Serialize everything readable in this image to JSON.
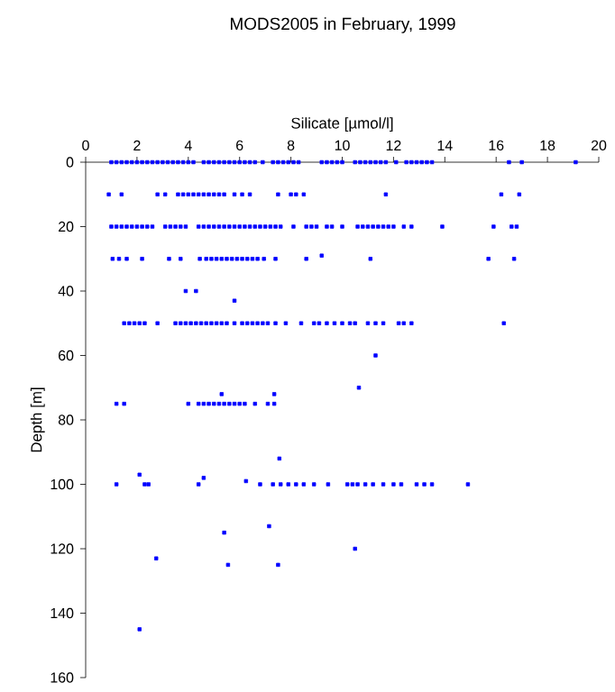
{
  "chart_data": {
    "type": "scatter",
    "title": "MODS2005 in February, 1999",
    "xlabel": "Silicate [µmol/l]",
    "ylabel": "Depth [m]",
    "xlim": [
      0,
      20
    ],
    "ylim": [
      160,
      0
    ],
    "xticks": [
      0,
      2,
      4,
      6,
      8,
      10,
      12,
      14,
      16,
      18,
      20
    ],
    "yticks": [
      0,
      20,
      40,
      60,
      80,
      100,
      120,
      140,
      160
    ],
    "marker": "square",
    "grid": false,
    "series": [
      {
        "color": "#0000ff",
        "x": [
          1.0,
          1.2,
          1.4,
          1.6,
          1.8,
          2.0,
          2.2,
          2.4,
          2.6,
          2.8,
          3.0,
          3.2,
          3.4,
          3.6,
          3.8,
          4.0,
          4.2,
          4.6,
          4.8,
          5.0,
          5.2,
          5.4,
          5.6,
          5.8,
          6.0,
          6.2,
          6.4,
          6.6,
          6.9,
          7.3,
          7.5,
          7.7,
          7.9,
          8.1,
          8.3,
          9.2,
          9.4,
          9.6,
          9.8,
          10.0,
          10.5,
          10.7,
          10.9,
          11.1,
          11.3,
          11.5,
          11.7,
          12.1,
          12.5,
          12.7,
          12.9,
          13.1,
          13.3,
          13.5,
          16.5,
          17.0,
          19.1
        ],
        "values": [
          0,
          0,
          0,
          0,
          0,
          0,
          0,
          0,
          0,
          0,
          0,
          0,
          0,
          0,
          0,
          0,
          0,
          0,
          0,
          0,
          0,
          0,
          0,
          0,
          0,
          0,
          0,
          0,
          0,
          0,
          0,
          0,
          0,
          0,
          0,
          0,
          0,
          0,
          0,
          0,
          0,
          0,
          0,
          0,
          0,
          0,
          0,
          0,
          0,
          0,
          0,
          0,
          0,
          0,
          0,
          0,
          0
        ]
      },
      {
        "color": "#0000ff",
        "x": [
          0.9,
          1.4,
          2.8,
          3.1,
          3.6,
          3.8,
          4.0,
          4.2,
          4.4,
          4.6,
          4.8,
          5.0,
          5.2,
          5.4,
          5.8,
          6.1,
          6.4,
          7.5,
          8.0,
          8.2,
          8.5,
          11.7,
          16.2,
          16.9
        ],
        "values": [
          10,
          10,
          10,
          10,
          10,
          10,
          10,
          10,
          10,
          10,
          10,
          10,
          10,
          10,
          10,
          10,
          10,
          10,
          10,
          10,
          10,
          10,
          10,
          10
        ]
      },
      {
        "color": "#0000ff",
        "x": [
          1.0,
          1.2,
          1.4,
          1.6,
          1.8,
          2.0,
          2.2,
          2.4,
          2.6,
          3.1,
          3.3,
          3.5,
          3.7,
          3.9,
          4.4,
          4.6,
          4.8,
          5.0,
          5.2,
          5.4,
          5.6,
          5.8,
          6.0,
          6.2,
          6.4,
          6.6,
          6.8,
          7.0,
          7.2,
          7.4,
          7.6,
          8.1,
          8.6,
          8.8,
          9.0,
          9.4,
          9.6,
          10.0,
          10.6,
          10.8,
          11.0,
          11.2,
          11.4,
          11.6,
          11.8,
          12.0,
          12.4,
          12.7,
          13.9,
          15.9,
          16.6,
          16.8
        ],
        "values": [
          20,
          20,
          20,
          20,
          20,
          20,
          20,
          20,
          20,
          20,
          20,
          20,
          20,
          20,
          20,
          20,
          20,
          20,
          20,
          20,
          20,
          20,
          20,
          20,
          20,
          20,
          20,
          20,
          20,
          20,
          20,
          20,
          20,
          20,
          20,
          20,
          20,
          20,
          20,
          20,
          20,
          20,
          20,
          20,
          20,
          20,
          20,
          20,
          20,
          20,
          20,
          20
        ]
      },
      {
        "color": "#0000ff",
        "x": [
          1.05,
          1.3,
          1.6,
          2.2,
          3.25,
          3.7,
          4.45,
          4.7,
          4.9,
          5.1,
          5.3,
          5.5,
          5.7,
          5.9,
          6.1,
          6.3,
          6.5,
          6.7,
          6.95,
          7.4,
          8.6,
          11.1,
          15.7,
          16.7,
          9.2
        ],
        "values": [
          30,
          30,
          30,
          30,
          30,
          30,
          30,
          30,
          30,
          30,
          30,
          30,
          30,
          30,
          30,
          30,
          30,
          30,
          30,
          30,
          30,
          30,
          30,
          30,
          29
        ]
      },
      {
        "color": "#0000ff",
        "x": [
          3.9,
          4.3,
          5.8
        ],
        "values": [
          40,
          40,
          43
        ]
      },
      {
        "color": "#0000ff",
        "x": [
          1.5,
          1.7,
          1.9,
          2.1,
          2.3,
          2.8,
          3.5,
          3.7,
          3.9,
          4.1,
          4.3,
          4.5,
          4.7,
          4.9,
          5.1,
          5.3,
          5.5,
          5.8,
          6.1,
          6.3,
          6.5,
          6.7,
          6.9,
          7.1,
          7.4,
          7.8,
          8.4,
          8.9,
          9.1,
          9.4,
          9.7,
          10.0,
          10.3,
          10.5,
          11.0,
          11.3,
          11.6,
          12.2,
          12.4,
          12.7,
          16.3
        ],
        "values": [
          50,
          50,
          50,
          50,
          50,
          50,
          50,
          50,
          50,
          50,
          50,
          50,
          50,
          50,
          50,
          50,
          50,
          50,
          50,
          50,
          50,
          50,
          50,
          50,
          50,
          50,
          50,
          50,
          50,
          50,
          50,
          50,
          50,
          50,
          50,
          50,
          50,
          50,
          50,
          50,
          50
        ]
      },
      {
        "color": "#0000ff",
        "x": [
          11.3,
          10.65,
          5.3,
          7.35
        ],
        "values": [
          60,
          70,
          72,
          72
        ]
      },
      {
        "color": "#0000ff",
        "x": [
          1.2,
          1.5,
          4.0,
          4.4,
          4.6,
          4.8,
          5.0,
          5.2,
          5.4,
          5.6,
          5.8,
          6.0,
          6.2,
          6.6,
          7.1,
          7.35
        ],
        "values": [
          75,
          75,
          75,
          75,
          75,
          75,
          75,
          75,
          75,
          75,
          75,
          75,
          75,
          75,
          75,
          75
        ]
      },
      {
        "color": "#0000ff",
        "x": [
          7.55,
          2.1,
          4.6,
          6.25
        ],
        "values": [
          92,
          97,
          98,
          99
        ]
      },
      {
        "color": "#0000ff",
        "x": [
          1.2,
          2.3,
          2.45,
          4.4,
          6.8,
          7.3,
          7.6,
          7.9,
          8.2,
          8.5,
          8.9,
          9.45,
          10.2,
          10.4,
          10.6,
          10.9,
          11.2,
          11.6,
          12.0,
          12.3,
          12.9,
          13.2,
          13.5,
          14.9
        ],
        "values": [
          100,
          100,
          100,
          100,
          100,
          100,
          100,
          100,
          100,
          100,
          100,
          100,
          100,
          100,
          100,
          100,
          100,
          100,
          100,
          100,
          100,
          100,
          100,
          100
        ]
      },
      {
        "color": "#0000ff",
        "x": [
          7.15,
          5.4,
          10.5,
          2.75,
          5.55,
          7.5,
          2.1
        ],
        "values": [
          113,
          115,
          120,
          123,
          125,
          125,
          145
        ]
      }
    ]
  }
}
